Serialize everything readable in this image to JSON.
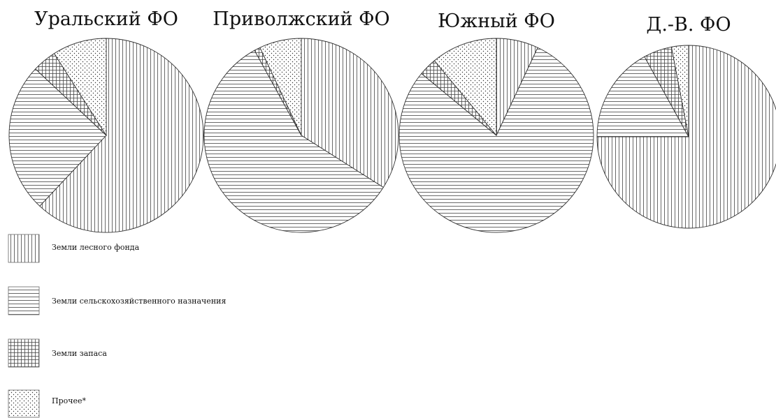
{
  "chart_data": {
    "type": "pie",
    "categories": [
      "Земли лесного фонда",
      "Земли сельскохозяйственного назначения",
      "Земли запаса",
      "Прочее*"
    ],
    "patterns": [
      "vertical-lines",
      "horizontal-lines",
      "grid",
      "dots"
    ],
    "charts": [
      {
        "title": "Уральский ФО",
        "values": [
          62,
          25,
          4,
          9
        ]
      },
      {
        "title": "Приволжский ФО",
        "values": [
          34,
          58,
          1,
          7
        ]
      },
      {
        "title": "Южный ФО",
        "values": [
          7,
          79,
          3,
          11
        ]
      },
      {
        "title": "Д.-В. ФО",
        "values": [
          75,
          17,
          5,
          3
        ]
      }
    ],
    "legend_position": "bottom-left"
  }
}
